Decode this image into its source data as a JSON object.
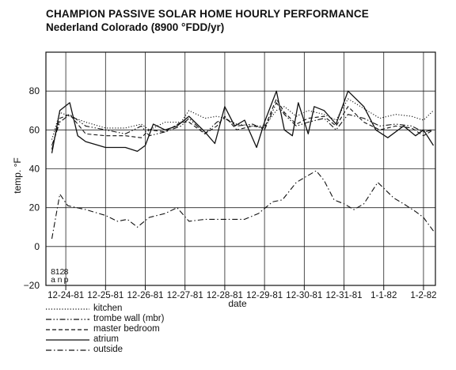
{
  "title": "CHAMPION PASSIVE SOLAR HOME HOURLY PERFORMANCE",
  "subtitle": "Nederland Colorado (8900 °FDD/yr)",
  "chart_data": {
    "type": "line",
    "title": "CHAMPION PASSIVE SOLAR HOME HOURLY PERFORMANCE",
    "subtitle": "Nederland Colorado (8900 °FDD/yr)",
    "xlabel": "date",
    "ylabel": "temp. °F",
    "ylim": [
      -20,
      100
    ],
    "yticks": [
      -20,
      0,
      20,
      40,
      60,
      80
    ],
    "xlim": [
      0,
      9.8
    ],
    "x_tick_labels": [
      "12-24-81",
      "12-25-81",
      "12-26-81",
      "12-27-81",
      "12-28-81",
      "12-29-81",
      "12-30-81",
      "12-31-81",
      "1-1-82",
      "1-2-82"
    ],
    "x_tick_positions": [
      0.5,
      1.5,
      2.5,
      3.5,
      4.5,
      5.5,
      6.5,
      7.5,
      8.5,
      9.5
    ],
    "hour_labels": [
      {
        "top": "8",
        "bottom": "a",
        "x": 0.18
      },
      {
        "top": "12",
        "bottom": "n",
        "x": 0.35
      },
      {
        "top": "8",
        "bottom": "p",
        "x": 0.51
      }
    ],
    "grid": true,
    "legend_position": "bottom-left",
    "series": [
      {
        "name": "kitchen",
        "style": "dotted",
        "x": [
          0.15,
          0.35,
          0.6,
          1.0,
          1.5,
          2.0,
          2.4,
          2.6,
          3.0,
          3.4,
          3.6,
          4.0,
          4.3,
          4.5,
          4.8,
          5.2,
          5.5,
          5.8,
          6.0,
          6.3,
          6.6,
          7.0,
          7.3,
          7.6,
          8.0,
          8.4,
          8.8,
          9.2,
          9.5,
          9.75
        ],
        "y": [
          55,
          69,
          67,
          64,
          61,
          61,
          63,
          60,
          64,
          64,
          70,
          66,
          67,
          66,
          63,
          62,
          62,
          70,
          72,
          67,
          70,
          68,
          65,
          76,
          71,
          66,
          68,
          67,
          65,
          70
        ]
      },
      {
        "name": "trombe wall (mbr)",
        "style": "dash-dot-dot",
        "x": [
          0.15,
          0.35,
          0.6,
          1.0,
          1.5,
          2.0,
          2.4,
          2.6,
          3.0,
          3.4,
          3.6,
          4.0,
          4.3,
          4.5,
          4.8,
          5.2,
          5.5,
          5.8,
          6.0,
          6.3,
          6.6,
          7.0,
          7.3,
          7.6,
          8.0,
          8.4,
          8.8,
          9.2,
          9.5,
          9.75
        ],
        "y": [
          52,
          64,
          68,
          62,
          60,
          58,
          62,
          57,
          59,
          62,
          66,
          58,
          64,
          66,
          62,
          63,
          60,
          74,
          68,
          62,
          64,
          66,
          60,
          68,
          66,
          62,
          63,
          62,
          59,
          60
        ]
      },
      {
        "name": "master bedroom",
        "style": "dashed",
        "x": [
          0.15,
          0.35,
          0.6,
          1.0,
          1.5,
          2.0,
          2.4,
          2.6,
          3.0,
          3.4,
          3.6,
          4.0,
          4.3,
          4.5,
          4.8,
          5.2,
          5.5,
          5.8,
          6.0,
          6.3,
          6.6,
          7.0,
          7.3,
          7.6,
          8.0,
          8.4,
          8.8,
          9.2,
          9.5,
          9.75
        ],
        "y": [
          50,
          66,
          68,
          58,
          57,
          57,
          56,
          60,
          59,
          64,
          64,
          58,
          62,
          67,
          60,
          62,
          61,
          76,
          69,
          63,
          66,
          67,
          62,
          72,
          64,
          60,
          62,
          61,
          57,
          60
        ]
      },
      {
        "name": "atrium",
        "style": "solid",
        "x": [
          0.15,
          0.35,
          0.6,
          0.8,
          1.0,
          1.5,
          2.0,
          2.3,
          2.5,
          2.7,
          3.0,
          3.3,
          3.6,
          4.0,
          4.25,
          4.5,
          4.75,
          5.0,
          5.3,
          5.5,
          5.8,
          6.0,
          6.2,
          6.35,
          6.6,
          6.75,
          7.0,
          7.3,
          7.6,
          8.0,
          8.3,
          8.6,
          9.0,
          9.3,
          9.5,
          9.75
        ],
        "y": [
          48,
          70,
          74,
          57,
          54,
          51,
          51,
          49,
          52,
          63,
          60,
          62,
          67,
          59,
          53,
          72,
          62,
          65,
          51,
          64,
          80,
          60,
          57,
          74,
          58,
          72,
          70,
          63,
          80,
          72,
          60,
          56,
          62,
          57,
          60,
          52
        ]
      },
      {
        "name": "outside",
        "style": "dash-dot",
        "x": [
          0.15,
          0.35,
          0.55,
          1.0,
          1.5,
          1.8,
          2.05,
          2.3,
          2.6,
          3.0,
          3.3,
          3.6,
          4.0,
          4.5,
          5.0,
          5.35,
          5.7,
          5.95,
          6.3,
          6.55,
          6.8,
          7.0,
          7.25,
          7.5,
          7.75,
          8.0,
          8.35,
          8.75,
          9.0,
          9.3,
          9.5,
          9.75
        ],
        "y": [
          4,
          27,
          21,
          19,
          16,
          13,
          14,
          10,
          15,
          17,
          20,
          13,
          14,
          14,
          14,
          17,
          23,
          24,
          33,
          36,
          39,
          34,
          24,
          22,
          19,
          22,
          33,
          25,
          22,
          18,
          15,
          8
        ]
      }
    ]
  }
}
